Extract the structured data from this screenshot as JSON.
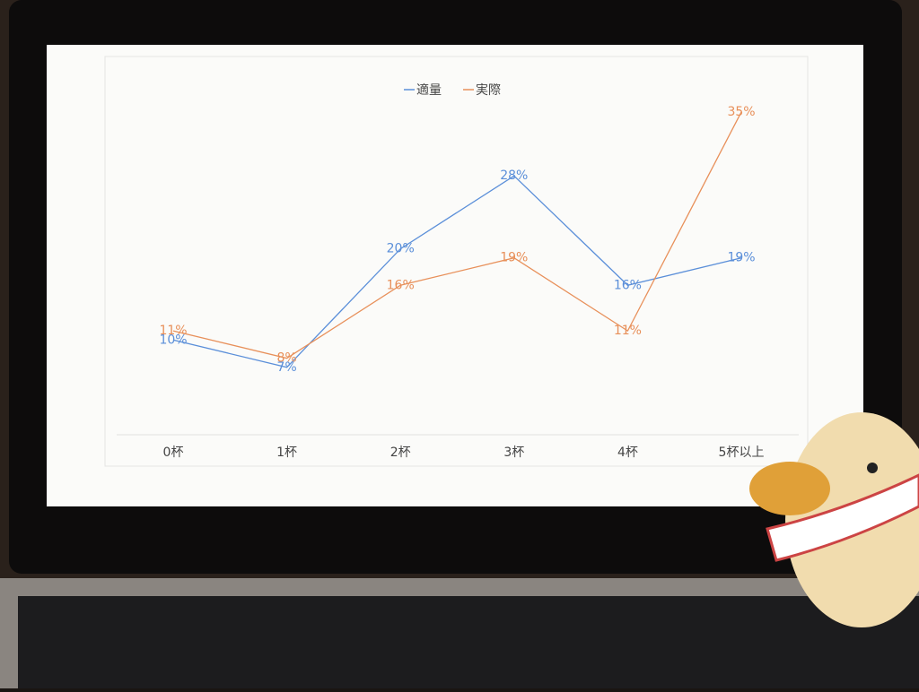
{
  "chart_data": {
    "type": "line",
    "categories": [
      "0杯",
      "1杯",
      "2杯",
      "3杯",
      "4杯",
      "5杯以上"
    ],
    "series": [
      {
        "name": "適量",
        "color": "#5b8fd9",
        "values": [
          10,
          7,
          20,
          28,
          16,
          19
        ],
        "value_labels": [
          "10%",
          "7%",
          "20%",
          "28%",
          "16%",
          "19%"
        ]
      },
      {
        "name": "実際",
        "color": "#e8905a",
        "values": [
          11,
          8,
          16,
          19,
          11,
          35
        ],
        "value_labels": [
          "11%",
          "8%",
          "16%",
          "19%",
          "11%",
          "35%"
        ]
      }
    ],
    "legend": "top"
  }
}
